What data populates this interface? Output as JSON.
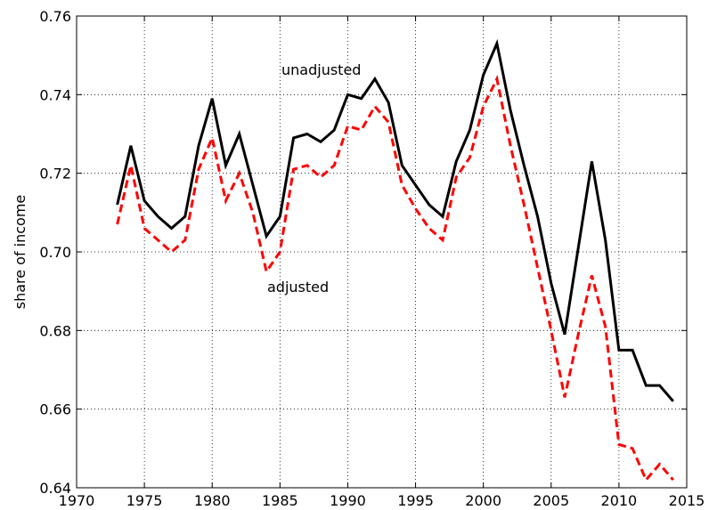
{
  "chart_data": {
    "type": "line",
    "ylabel": "share of income",
    "x": [
      1973,
      1974,
      1975,
      1976,
      1977,
      1978,
      1979,
      1980,
      1981,
      1982,
      1983,
      1984,
      1985,
      1986,
      1987,
      1988,
      1989,
      1990,
      1991,
      1992,
      1993,
      1994,
      1995,
      1996,
      1997,
      1998,
      1999,
      2000,
      2001,
      2002,
      2003,
      2004,
      2005,
      2006,
      2007,
      2008,
      2009,
      2010,
      2011,
      2012,
      2013,
      2014
    ],
    "series": [
      {
        "name": "unadjusted",
        "color": "#000000",
        "linestyle": "solid",
        "values": [
          0.712,
          0.727,
          0.713,
          0.709,
          0.706,
          0.709,
          0.727,
          0.739,
          0.722,
          0.73,
          0.717,
          0.704,
          0.709,
          0.729,
          0.73,
          0.728,
          0.731,
          0.74,
          0.739,
          0.744,
          0.738,
          0.722,
          0.717,
          0.712,
          0.709,
          0.723,
          0.731,
          0.745,
          0.753,
          0.736,
          0.722,
          0.709,
          0.692,
          0.679,
          0.701,
          0.723,
          0.703,
          0.675,
          0.675,
          0.666,
          0.666,
          0.662
        ]
      },
      {
        "name": "adjusted",
        "color": "#ff0000",
        "linestyle": "dashed",
        "values": [
          0.707,
          0.722,
          0.706,
          0.703,
          0.7,
          0.703,
          0.721,
          0.729,
          0.713,
          0.72,
          0.71,
          0.695,
          0.7,
          0.721,
          0.722,
          0.719,
          0.722,
          0.732,
          0.731,
          0.737,
          0.733,
          0.717,
          0.711,
          0.706,
          0.703,
          0.719,
          0.724,
          0.737,
          0.744,
          0.727,
          0.712,
          0.696,
          0.68,
          0.663,
          0.679,
          0.694,
          0.681,
          0.651,
          0.65,
          0.642,
          0.646,
          0.642
        ]
      }
    ],
    "xlim": [
      1970,
      2015
    ],
    "xticks": [
      1970,
      1975,
      1980,
      1985,
      1990,
      1995,
      2000,
      2005,
      2010,
      2015
    ],
    "ylim": [
      0.64,
      0.76
    ],
    "yticks": [
      0.64,
      0.66,
      0.68,
      {
        "value": 0.7,
        "label": "0.70"
      },
      0.72,
      0.74,
      0.76
    ],
    "grid": true
  }
}
